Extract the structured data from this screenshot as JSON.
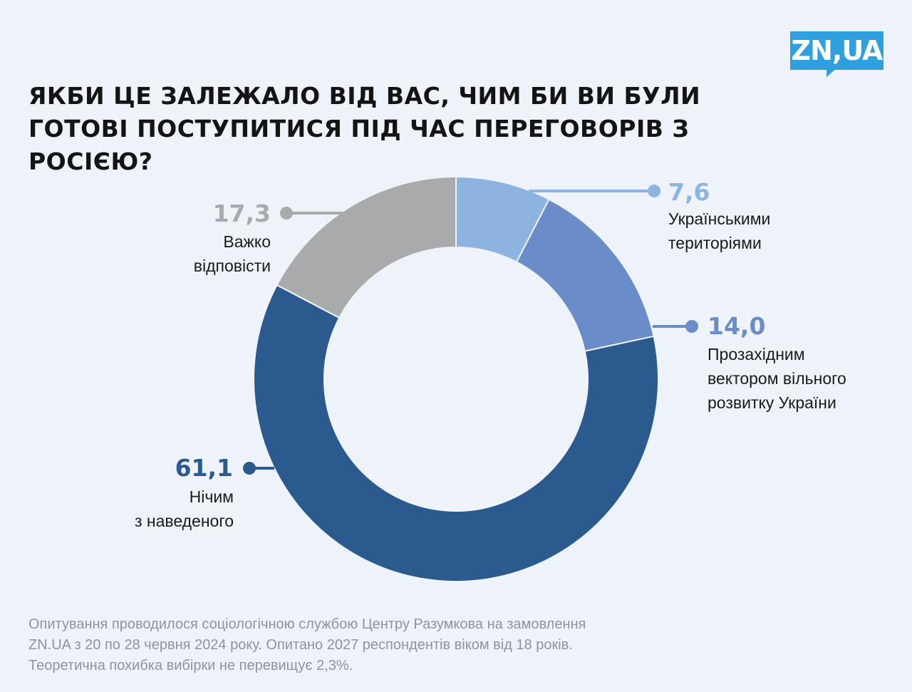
{
  "brand": {
    "logo_text": "ZN,UA",
    "color": "#2f9fe0"
  },
  "title": "Якби це залежало від вас, чим би ви були готові поступитися під час переговорів з Росією?",
  "chart_data": {
    "type": "pie",
    "variant": "donut",
    "start": "12 o'clock, clockwise",
    "slices": [
      {
        "value": 7.6,
        "label": "7,6",
        "name": "Українськими\nтериторіями",
        "color": "#8db3e0"
      },
      {
        "value": 14.0,
        "label": "14,0",
        "name": "Прозахідним\nвектором вільного\nрозвитку України",
        "color": "#6a8cc8"
      },
      {
        "value": 61.1,
        "label": "61,1",
        "name": "Нічим\nз наведеного",
        "color": "#2b5a8f"
      },
      {
        "value": 17.3,
        "label": "17,3",
        "name": "Важко\nвідповісти",
        "color": "#a9aaab"
      }
    ]
  },
  "footnote": "Опитування проводилося  соціологічною службою Центру Разумкова на замовлення\nZN.UA з 20 по 28 червня 2024 року. Опитано 2027 респондентів віком від 18 років.\nТеоретична похибка вибірки не перевищує 2,3%."
}
